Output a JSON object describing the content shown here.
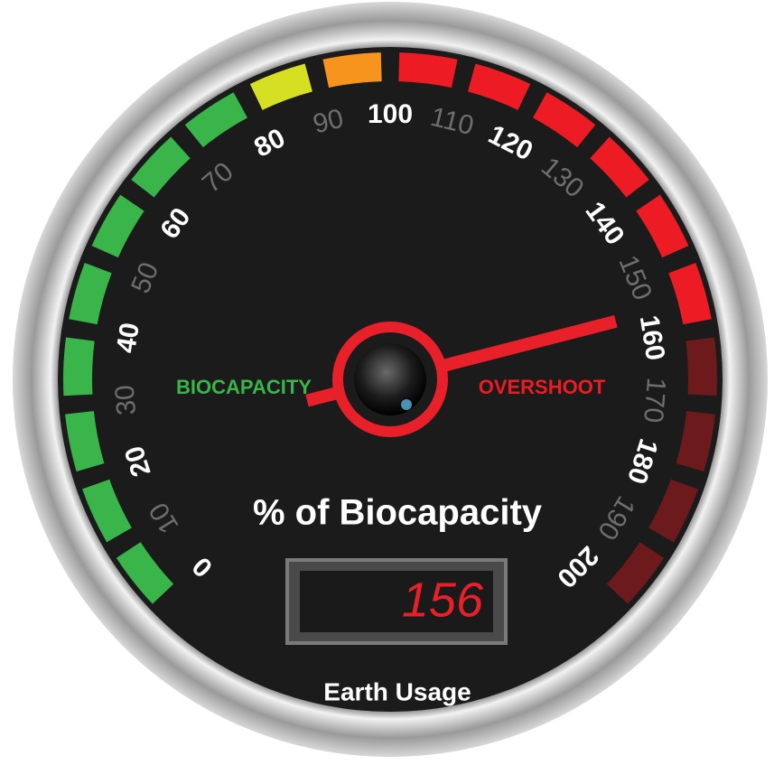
{
  "chart_data": {
    "type": "gauge",
    "title": "% of Biocapacity",
    "display_label": "Earth Usage",
    "left_label": "BIOCAPACITY",
    "right_label": "OVERSHOOT",
    "value": 156,
    "needle_color": "#e8202a",
    "range": [
      0,
      200
    ],
    "ticks": [
      0,
      10,
      20,
      30,
      40,
      50,
      60,
      70,
      80,
      90,
      100,
      110,
      120,
      130,
      140,
      150,
      160,
      170,
      180,
      190,
      200
    ],
    "bands": [
      {
        "from": 0,
        "to": 80,
        "color": "#39b54a"
      },
      {
        "from": 80,
        "to": 90,
        "color": "#d7df23"
      },
      {
        "from": 90,
        "to": 100,
        "color": "#f7941d"
      },
      {
        "from": 100,
        "to": 160,
        "color": "#ed1c24"
      },
      {
        "from": 160,
        "to": 200,
        "color": "#6d1a1d"
      }
    ]
  }
}
